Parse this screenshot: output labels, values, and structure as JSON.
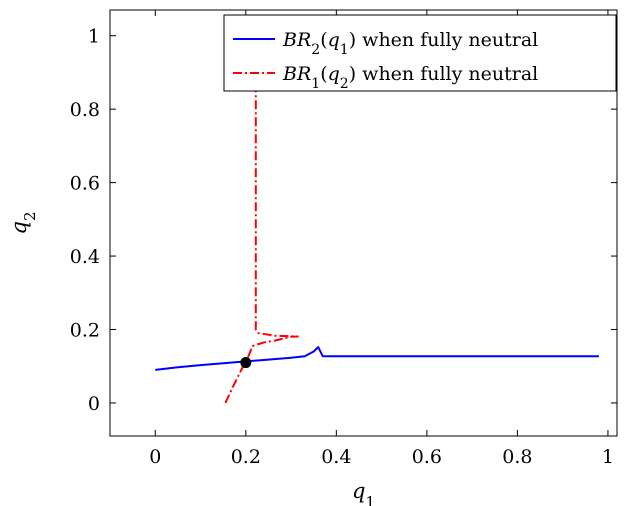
{
  "chart_data": {
    "type": "line",
    "title": "",
    "xlabel": "q1",
    "ylabel": "q2",
    "xlim": [
      -0.1,
      1.02
    ],
    "ylim": [
      -0.09,
      1.07
    ],
    "x_ticks": [
      0,
      0.2,
      0.4,
      0.6,
      0.8,
      1
    ],
    "x_tick_labels": [
      "0",
      "0.2",
      "0.4",
      "0.6",
      "0.8",
      "1"
    ],
    "y_ticks": [
      0,
      0.2,
      0.4,
      0.6,
      0.8,
      1
    ],
    "y_tick_labels": [
      "0",
      "0.2",
      "0.4",
      "0.6",
      "0.8",
      "1"
    ],
    "grid": false,
    "legend_position": "top-right",
    "series": [
      {
        "name": "BR2(q1) when fully neutral",
        "name_math": "BR2(q1)",
        "name_text": " when fully neutral",
        "color": "#0000ff",
        "style": "solid",
        "points": [
          [
            0.0,
            0.09
          ],
          [
            0.05,
            0.097
          ],
          [
            0.1,
            0.103
          ],
          [
            0.15,
            0.108
          ],
          [
            0.2,
            0.113
          ],
          [
            0.25,
            0.118
          ],
          [
            0.3,
            0.123
          ],
          [
            0.33,
            0.127
          ],
          [
            0.35,
            0.14
          ],
          [
            0.36,
            0.152
          ],
          [
            0.37,
            0.127
          ],
          [
            0.5,
            0.127
          ],
          [
            0.7,
            0.127
          ],
          [
            0.98,
            0.127
          ]
        ]
      },
      {
        "name": "BR1(q2) when fully neutral",
        "name_math": "BR1(q2)",
        "name_text": " when fully neutral",
        "color": "#ff0000",
        "style": "dashdot",
        "points": [
          [
            0.155,
            0.0
          ],
          [
            0.17,
            0.04
          ],
          [
            0.19,
            0.09
          ],
          [
            0.205,
            0.125
          ],
          [
            0.215,
            0.155
          ],
          [
            0.24,
            0.165
          ],
          [
            0.265,
            0.17
          ],
          [
            0.3,
            0.18
          ],
          [
            0.315,
            0.181
          ],
          [
            0.265,
            0.183
          ],
          [
            0.228,
            0.19
          ],
          [
            0.222,
            0.2
          ],
          [
            0.222,
            0.85
          ],
          [
            0.22,
            0.96
          ]
        ]
      }
    ],
    "markers": [
      {
        "name": "intersection point",
        "x": 0.2,
        "y": 0.11,
        "color": "#000000"
      }
    ]
  }
}
